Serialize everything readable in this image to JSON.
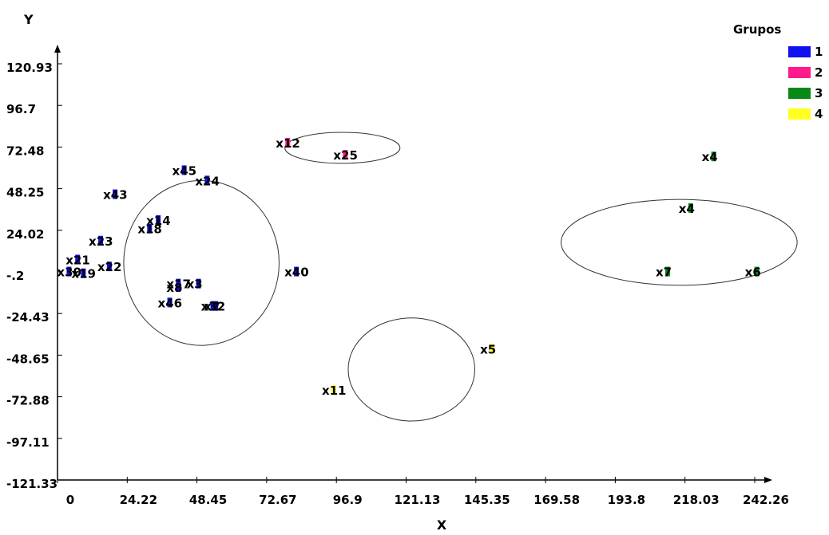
{
  "chart_data": {
    "type": "scatter",
    "xlabel": "X",
    "ylabel": "Y",
    "xlim": [
      0,
      242.26
    ],
    "ylim": [
      -121.33,
      120.93
    ],
    "x_ticks": [
      "0",
      "24.22",
      "48.45",
      "72.67",
      "96.9",
      "121.13",
      "145.35",
      "169.58",
      "193.8",
      "218.03",
      "242.26"
    ],
    "y_ticks": [
      "120.93",
      "96.7",
      "72.48",
      "48.25",
      "24.02",
      "-.2",
      "-24.43",
      "-48.65",
      "-72.88",
      "-97.11",
      "-121.33"
    ],
    "grid": false,
    "legend": {
      "title": "Grupos",
      "placement": "top-right",
      "entries": [
        {
          "label": "1",
          "color": "#1010f0"
        },
        {
          "label": "2",
          "color": "#ff1a8c"
        },
        {
          "label": "3",
          "color": "#0a8a14"
        },
        {
          "label": "4",
          "color": "#ffff22"
        }
      ]
    },
    "series": [
      {
        "name": "1",
        "color": "#1010f0",
        "points": [
          {
            "label": "x45",
            "x": 44,
            "y": 59
          },
          {
            "label": "x24",
            "x": 52,
            "y": 53
          },
          {
            "label": "x43",
            "x": 20,
            "y": 45
          },
          {
            "label": "x14",
            "x": 35,
            "y": 30
          },
          {
            "label": "x18",
            "x": 32,
            "y": 25
          },
          {
            "label": "x23",
            "x": 15,
            "y": 18
          },
          {
            "label": "x21",
            "x": 7,
            "y": 7
          },
          {
            "label": "x22",
            "x": 18,
            "y": 3
          },
          {
            "label": "x30",
            "x": 4,
            "y": 0
          },
          {
            "label": "x19",
            "x": 9,
            "y": -1
          },
          {
            "label": "x40",
            "x": 83,
            "y": 0
          },
          {
            "label": "x17",
            "x": 42,
            "y": -7
          },
          {
            "label": "x3",
            "x": 49,
            "y": -7
          },
          {
            "label": "x8",
            "x": 42,
            "y": -9
          },
          {
            "label": "x46",
            "x": 39,
            "y": -18
          },
          {
            "label": "x2",
            "x": 55,
            "y": -20
          },
          {
            "label": "x32",
            "x": 54,
            "y": -20
          }
        ]
      },
      {
        "name": "2",
        "color": "#ff1a8c",
        "points": [
          {
            "label": "x12",
            "x": 80,
            "y": 75
          },
          {
            "label": "x25",
            "x": 100,
            "y": 68
          }
        ]
      },
      {
        "name": "3",
        "color": "#0a8a14",
        "points": [
          {
            "label": "x4",
            "x": 228,
            "y": 67
          },
          {
            "label": "x4",
            "x": 220,
            "y": 37
          },
          {
            "label": "x7",
            "x": 212,
            "y": 0
          },
          {
            "label": "x6",
            "x": 243,
            "y": 0
          }
        ]
      },
      {
        "name": "4",
        "color": "#ffff22",
        "points": [
          {
            "label": "x5",
            "x": 151,
            "y": -45
          },
          {
            "label": "x11",
            "x": 96,
            "y": -69
          }
        ]
      }
    ],
    "clusters": [
      {
        "cx": 50,
        "cy": 5,
        "rx": 27,
        "ry": 48,
        "name": "grupo-1"
      },
      {
        "cx": 99,
        "cy": 72,
        "rx": 20,
        "ry": 9,
        "name": "grupo-2"
      },
      {
        "cx": 216,
        "cy": 17,
        "rx": 41,
        "ry": 25,
        "name": "grupo-3"
      },
      {
        "cx": 123,
        "cy": -57,
        "rx": 22,
        "ry": 30,
        "name": "grupo-4"
      }
    ]
  }
}
